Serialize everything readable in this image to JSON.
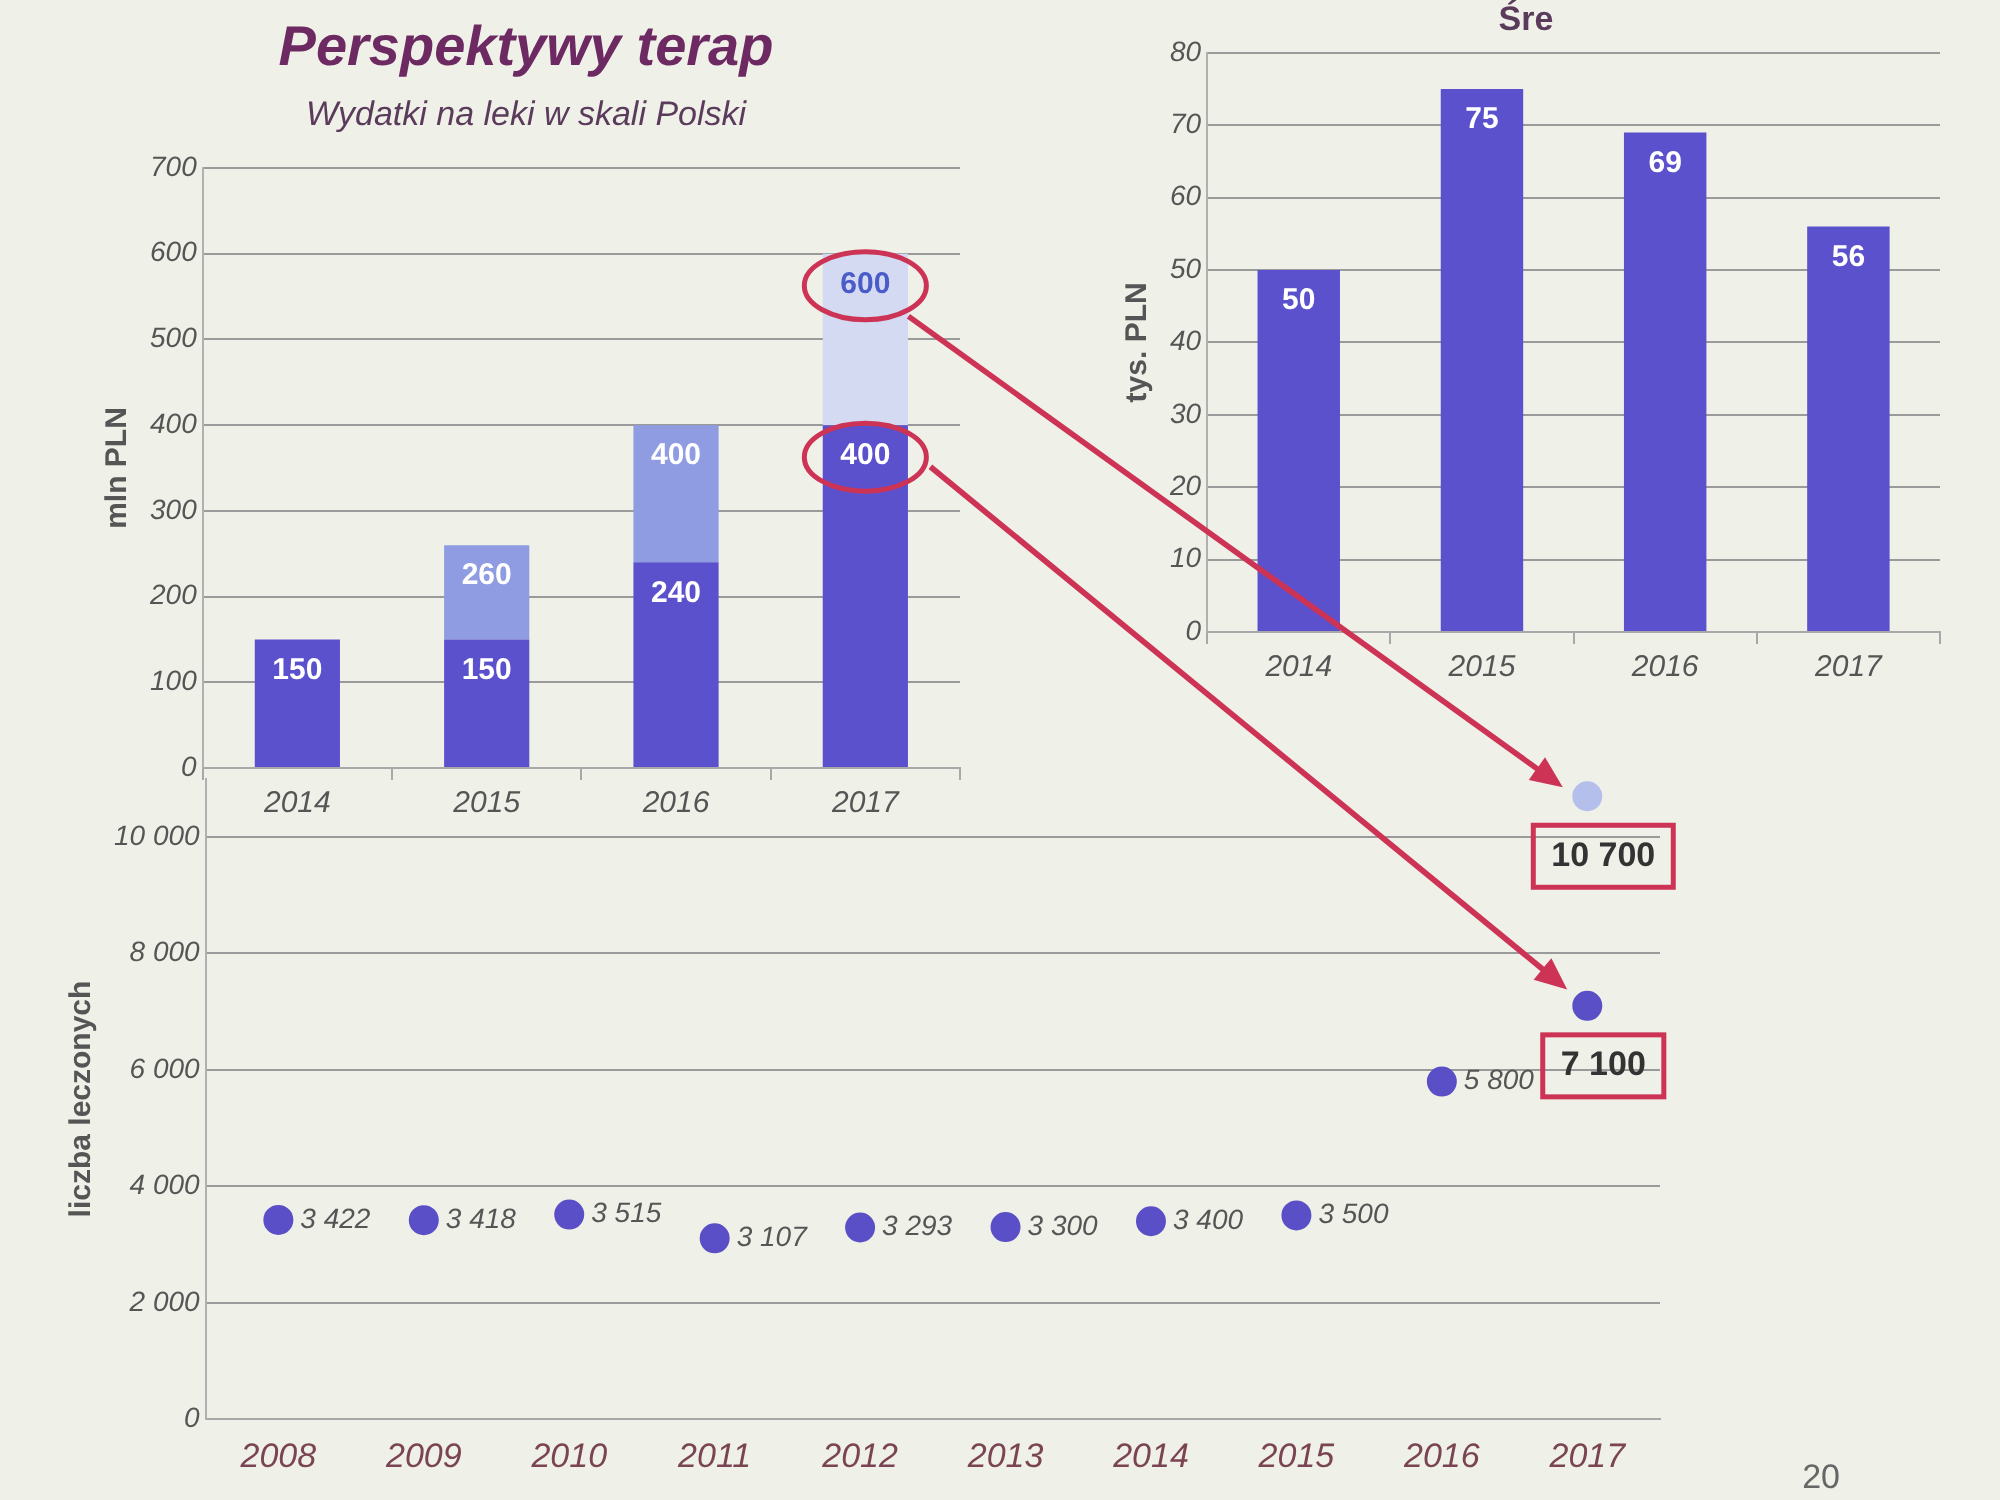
{
  "chart_data": [
    {
      "type": "bar",
      "title": "Perspektywy terap",
      "subtitle": "Wydatki na leki w skali Polski",
      "ylabel": "mln PLN",
      "categories": [
        "2014",
        "2015",
        "2016",
        "2017"
      ],
      "stacked": true,
      "series": [
        {
          "color": "#5b51cd",
          "values": [
            150,
            150,
            240,
            400
          ],
          "value_labels": [
            "150",
            "150",
            "240",
            "400"
          ]
        },
        {
          "colors": [
            "#8f9ce2",
            "#8f9ce2",
            "#8f9ce2",
            "#d3daf1"
          ],
          "values": [
            null,
            110,
            160,
            200
          ]
        }
      ],
      "totals": [
        null,
        "260",
        "400",
        "600"
      ],
      "ylim": [
        0,
        700
      ],
      "yticks": [
        0,
        100,
        200,
        300,
        400,
        500,
        600,
        700
      ],
      "grid": "y"
    },
    {
      "type": "bar",
      "title": "Śre",
      "ylabel": "tys. PLN",
      "categories": [
        "2014",
        "2015",
        "2016",
        "2017"
      ],
      "values": [
        50,
        75,
        69,
        56
      ],
      "color": "#5b51cd",
      "data_labels": true,
      "ylim": [
        0,
        80
      ],
      "yticks": [
        0,
        10,
        20,
        30,
        40,
        50,
        60,
        70,
        80
      ],
      "grid": "y"
    },
    {
      "type": "scatter",
      "ylabel": "liczba leczonych",
      "categories": [
        "2008",
        "2009",
        "2010",
        "2011",
        "2012",
        "2013",
        "2014",
        "2015",
        "2016",
        "2017"
      ],
      "marker": "circle",
      "series": [
        {
          "color": "#5a4fc6",
          "values": [
            3422,
            3418,
            3515,
            3107,
            3293,
            3300,
            3400,
            3500,
            5800,
            7100
          ],
          "value_labels": [
            "3 422",
            "3 418",
            "3 515",
            "3 107",
            "3 293",
            "3 300",
            "3 400",
            "3 500",
            "5 800",
            null
          ]
        },
        {
          "color": "#b4bfec",
          "values": [
            null,
            null,
            null,
            null,
            null,
            null,
            null,
            null,
            null,
            10700
          ]
        }
      ],
      "ylim": [
        0,
        11000
      ],
      "yticks": [
        0,
        {
          "value": 2000,
          "label": "2 000"
        },
        {
          "value": 4000,
          "label": "4 000"
        },
        {
          "value": 6000,
          "label": "6 000"
        },
        {
          "value": 8000,
          "label": "8 000"
        },
        {
          "value": 10000,
          "label": "10 000"
        }
      ],
      "grid": "y",
      "annotations": [
        {
          "text": "10 700",
          "x": "2017",
          "y": 10700
        },
        {
          "text": "7 100",
          "x": "2017",
          "y": 7100
        },
        "20"
      ]
    }
  ]
}
